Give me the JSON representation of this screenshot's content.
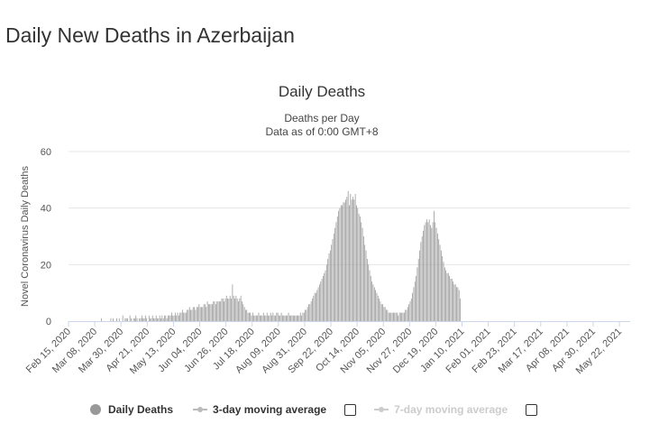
{
  "page": {
    "title": "Daily New Deaths in Azerbaijan"
  },
  "chart_data": {
    "type": "bar",
    "title": "Daily Deaths",
    "subtitle_lines": [
      "Deaths per Day",
      "Data as of 0:00 GMT+8"
    ],
    "ylabel": "Novel Coronavirus Daily Deaths",
    "xlabel": "",
    "ylim": [
      0,
      60
    ],
    "yticks": [
      0,
      20,
      40,
      60
    ],
    "grid": true,
    "legend_position": "bottom",
    "x_start": "2020-02-15",
    "x_end": "2021-05-31",
    "x_tick_labels": [
      "Feb 15, 2020",
      "Mar 08, 2020",
      "Mar 30, 2020",
      "Apr 21, 2020",
      "May 13, 2020",
      "Jun 04, 2020",
      "Jun 26, 2020",
      "Jul 18, 2020",
      "Aug 09, 2020",
      "Aug 31, 2020",
      "Sep 22, 2020",
      "Oct 14, 2020",
      "Nov 05, 2020",
      "Nov 27, 2020",
      "Dec 19, 2020",
      "Jan 10, 2021",
      "Feb 01, 2021",
      "Feb 23, 2021",
      "Mar 17, 2021",
      "Apr 08, 2021",
      "Apr 30, 2021",
      "May 22, 2021"
    ],
    "bar_color": "#999999",
    "series": [
      {
        "name": "Daily Deaths",
        "daily_values_by_week": [
          [
            0,
            0,
            0,
            0,
            0,
            0,
            0
          ],
          [
            0,
            0,
            0,
            0,
            0,
            0,
            0
          ],
          [
            0,
            0,
            0,
            0,
            0,
            0,
            0
          ],
          [
            0,
            0,
            0,
            0,
            0,
            0,
            1
          ],
          [
            0,
            0,
            0,
            0,
            0,
            0,
            0
          ],
          [
            1,
            0,
            1,
            0,
            0,
            1,
            0
          ],
          [
            1,
            0,
            0,
            2,
            0,
            1,
            1
          ],
          [
            1,
            0,
            2,
            1,
            0,
            1,
            1
          ],
          [
            2,
            1,
            0,
            1,
            1,
            2,
            1
          ],
          [
            1,
            2,
            1,
            0,
            2,
            1,
            1
          ],
          [
            2,
            1,
            1,
            2,
            1,
            1,
            2
          ],
          [
            1,
            2,
            1,
            2,
            2,
            1,
            2
          ],
          [
            2,
            2,
            3,
            2,
            2,
            3,
            2
          ],
          [
            3,
            2,
            3,
            3,
            4,
            3,
            3
          ],
          [
            3,
            4,
            4,
            5,
            4,
            4,
            5
          ],
          [
            5,
            4,
            5,
            5,
            6,
            5,
            5
          ],
          [
            5,
            6,
            6,
            5,
            7,
            6,
            6
          ],
          [
            6,
            6,
            7,
            7,
            6,
            7,
            7
          ],
          [
            7,
            7,
            8,
            8,
            7,
            8,
            9
          ],
          [
            8,
            8,
            9,
            8,
            13,
            9,
            8
          ],
          [
            9,
            8,
            7,
            8,
            9,
            7,
            6
          ],
          [
            5,
            4,
            4,
            3,
            3,
            3,
            2
          ],
          [
            3,
            2,
            2,
            2,
            2,
            3,
            2
          ],
          [
            2,
            2,
            3,
            2,
            2,
            3,
            2
          ],
          [
            2,
            3,
            2,
            3,
            2,
            2,
            3
          ],
          [
            3,
            2,
            2,
            3,
            2,
            2,
            2
          ],
          [
            2,
            2,
            3,
            2,
            2,
            2,
            2
          ],
          [
            2,
            2,
            2,
            2,
            2,
            3,
            2
          ],
          [
            3,
            3,
            4,
            4,
            5,
            6,
            6
          ],
          [
            7,
            8,
            9,
            10,
            10,
            11,
            12
          ],
          [
            13,
            14,
            15,
            16,
            17,
            18,
            20
          ],
          [
            22,
            24,
            25,
            27,
            29,
            31,
            33
          ],
          [
            35,
            37,
            39,
            40,
            41,
            41,
            42
          ],
          [
            42,
            43,
            44,
            46,
            41,
            45,
            43
          ],
          [
            44,
            43,
            45,
            41,
            40,
            38,
            37
          ],
          [
            35,
            33,
            30,
            27,
            25,
            22,
            20
          ],
          [
            18,
            16,
            14,
            13,
            12,
            11,
            10
          ],
          [
            9,
            8,
            7,
            6,
            6,
            5,
            5
          ],
          [
            4,
            4,
            3,
            3,
            3,
            3,
            3
          ],
          [
            3,
            3,
            3,
            2,
            3,
            3,
            3
          ],
          [
            3,
            3,
            4,
            4,
            5,
            6,
            7
          ],
          [
            8,
            10,
            12,
            14,
            16,
            19,
            22
          ],
          [
            25,
            28,
            30,
            32,
            34,
            35,
            36
          ],
          [
            35,
            36,
            34,
            33,
            35,
            39,
            35
          ],
          [
            33,
            31,
            29,
            27,
            25,
            23,
            21
          ],
          [
            19,
            18,
            17,
            17,
            16,
            15,
            15
          ],
          [
            14,
            13,
            13,
            12,
            12,
            11,
            8
          ]
        ]
      },
      {
        "name": "3-day moving average"
      },
      {
        "name": "7-day moving average"
      }
    ]
  },
  "legend": {
    "colors": {
      "daily": "#999999",
      "ma3": "#bbbbbb",
      "ma7": "#cccccc",
      "daily_text": "#333333",
      "ma3_text": "#333333",
      "ma7_text": "#cccccc"
    }
  }
}
